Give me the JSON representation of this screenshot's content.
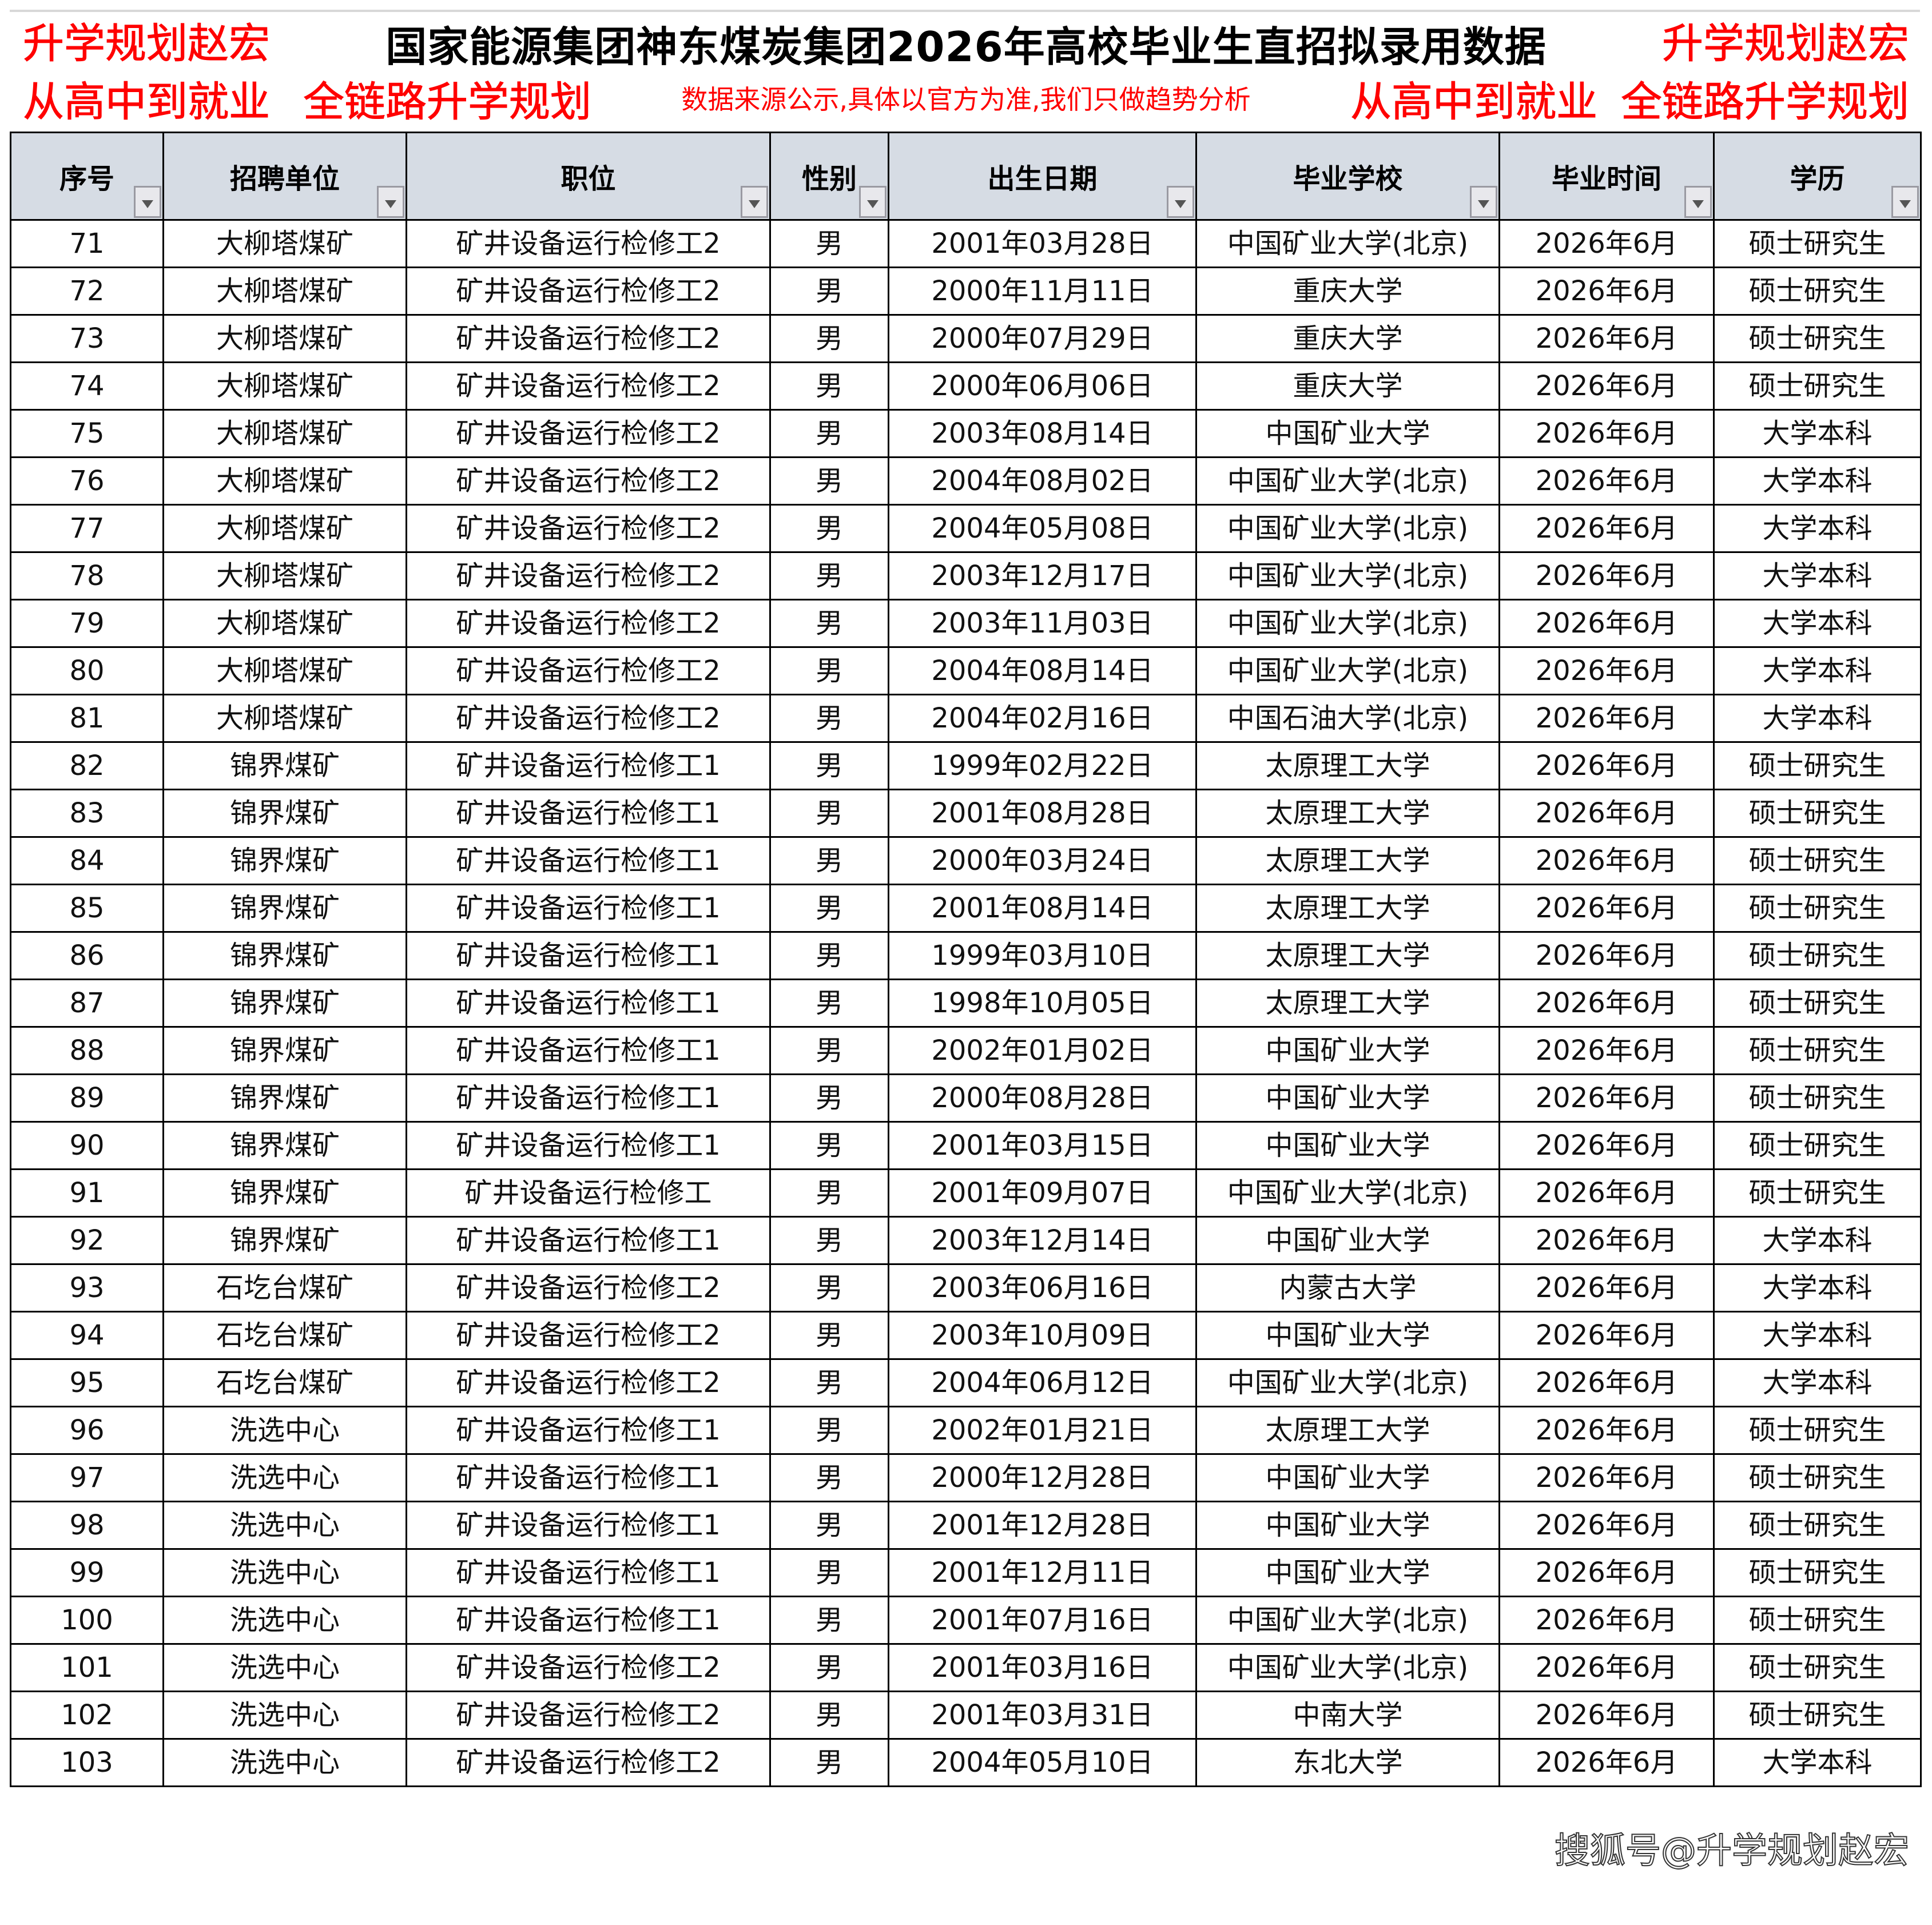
{
  "title": "国家能源集团神东煤炭集团2026年高校毕业生直招拟录用数据",
  "subtitle": "数据来源公示,具体以官方为准,我们只做趋势分析",
  "columns": [
    "序号",
    "招聘单位",
    "职位",
    "性别",
    "出生日期",
    "毕业学校",
    "毕业时间",
    "学历"
  ],
  "rows": [
    [
      "71",
      "大柳塔煤矿",
      "矿井设备运行检修工2",
      "男",
      "2001年03月28日",
      "中国矿业大学(北京)",
      "2026年6月",
      "硕士研究生"
    ],
    [
      "72",
      "大柳塔煤矿",
      "矿井设备运行检修工2",
      "男",
      "2000年11月11日",
      "重庆大学",
      "2026年6月",
      "硕士研究生"
    ],
    [
      "73",
      "大柳塔煤矿",
      "矿井设备运行检修工2",
      "男",
      "2000年07月29日",
      "重庆大学",
      "2026年6月",
      "硕士研究生"
    ],
    [
      "74",
      "大柳塔煤矿",
      "矿井设备运行检修工2",
      "男",
      "2000年06月06日",
      "重庆大学",
      "2026年6月",
      "硕士研究生"
    ],
    [
      "75",
      "大柳塔煤矿",
      "矿井设备运行检修工2",
      "男",
      "2003年08月14日",
      "中国矿业大学",
      "2026年6月",
      "大学本科"
    ],
    [
      "76",
      "大柳塔煤矿",
      "矿井设备运行检修工2",
      "男",
      "2004年08月02日",
      "中国矿业大学(北京)",
      "2026年6月",
      "大学本科"
    ],
    [
      "77",
      "大柳塔煤矿",
      "矿井设备运行检修工2",
      "男",
      "2004年05月08日",
      "中国矿业大学(北京)",
      "2026年6月",
      "大学本科"
    ],
    [
      "78",
      "大柳塔煤矿",
      "矿井设备运行检修工2",
      "男",
      "2003年12月17日",
      "中国矿业大学(北京)",
      "2026年6月",
      "大学本科"
    ],
    [
      "79",
      "大柳塔煤矿",
      "矿井设备运行检修工2",
      "男",
      "2003年11月03日",
      "中国矿业大学(北京)",
      "2026年6月",
      "大学本科"
    ],
    [
      "80",
      "大柳塔煤矿",
      "矿井设备运行检修工2",
      "男",
      "2004年08月14日",
      "中国矿业大学(北京)",
      "2026年6月",
      "大学本科"
    ],
    [
      "81",
      "大柳塔煤矿",
      "矿井设备运行检修工2",
      "男",
      "2004年02月16日",
      "中国石油大学(北京)",
      "2026年6月",
      "大学本科"
    ],
    [
      "82",
      "锦界煤矿",
      "矿井设备运行检修工1",
      "男",
      "1999年02月22日",
      "太原理工大学",
      "2026年6月",
      "硕士研究生"
    ],
    [
      "83",
      "锦界煤矿",
      "矿井设备运行检修工1",
      "男",
      "2001年08月28日",
      "太原理工大学",
      "2026年6月",
      "硕士研究生"
    ],
    [
      "84",
      "锦界煤矿",
      "矿井设备运行检修工1",
      "男",
      "2000年03月24日",
      "太原理工大学",
      "2026年6月",
      "硕士研究生"
    ],
    [
      "85",
      "锦界煤矿",
      "矿井设备运行检修工1",
      "男",
      "2001年08月14日",
      "太原理工大学",
      "2026年6月",
      "硕士研究生"
    ],
    [
      "86",
      "锦界煤矿",
      "矿井设备运行检修工1",
      "男",
      "1999年03月10日",
      "太原理工大学",
      "2026年6月",
      "硕士研究生"
    ],
    [
      "87",
      "锦界煤矿",
      "矿井设备运行检修工1",
      "男",
      "1998年10月05日",
      "太原理工大学",
      "2026年6月",
      "硕士研究生"
    ],
    [
      "88",
      "锦界煤矿",
      "矿井设备运行检修工1",
      "男",
      "2002年01月02日",
      "中国矿业大学",
      "2026年6月",
      "硕士研究生"
    ],
    [
      "89",
      "锦界煤矿",
      "矿井设备运行检修工1",
      "男",
      "2000年08月28日",
      "中国矿业大学",
      "2026年6月",
      "硕士研究生"
    ],
    [
      "90",
      "锦界煤矿",
      "矿井设备运行检修工1",
      "男",
      "2001年03月15日",
      "中国矿业大学",
      "2026年6月",
      "硕士研究生"
    ],
    [
      "91",
      "锦界煤矿",
      "矿井设备运行检修工",
      "男",
      "2001年09月07日",
      "中国矿业大学(北京)",
      "2026年6月",
      "硕士研究生"
    ],
    [
      "92",
      "锦界煤矿",
      "矿井设备运行检修工1",
      "男",
      "2003年12月14日",
      "中国矿业大学",
      "2026年6月",
      "大学本科"
    ],
    [
      "93",
      "石圪台煤矿",
      "矿井设备运行检修工2",
      "男",
      "2003年06月16日",
      "内蒙古大学",
      "2026年6月",
      "大学本科"
    ],
    [
      "94",
      "石圪台煤矿",
      "矿井设备运行检修工2",
      "男",
      "2003年10月09日",
      "中国矿业大学",
      "2026年6月",
      "大学本科"
    ],
    [
      "95",
      "石圪台煤矿",
      "矿井设备运行检修工2",
      "男",
      "2004年06月12日",
      "中国矿业大学(北京)",
      "2026年6月",
      "大学本科"
    ],
    [
      "96",
      "洗选中心",
      "矿井设备运行检修工1",
      "男",
      "2002年01月21日",
      "太原理工大学",
      "2026年6月",
      "硕士研究生"
    ],
    [
      "97",
      "洗选中心",
      "矿井设备运行检修工1",
      "男",
      "2000年12月28日",
      "中国矿业大学",
      "2026年6月",
      "硕士研究生"
    ],
    [
      "98",
      "洗选中心",
      "矿井设备运行检修工1",
      "男",
      "2001年12月28日",
      "中国矿业大学",
      "2026年6月",
      "硕士研究生"
    ],
    [
      "99",
      "洗选中心",
      "矿井设备运行检修工1",
      "男",
      "2001年12月11日",
      "中国矿业大学",
      "2026年6月",
      "硕士研究生"
    ],
    [
      "100",
      "洗选中心",
      "矿井设备运行检修工1",
      "男",
      "2001年07月16日",
      "中国矿业大学(北京)",
      "2026年6月",
      "硕士研究生"
    ],
    [
      "101",
      "洗选中心",
      "矿井设备运行检修工2",
      "男",
      "2001年03月16日",
      "中国矿业大学(北京)",
      "2026年6月",
      "硕士研究生"
    ],
    [
      "102",
      "洗选中心",
      "矿井设备运行检修工2",
      "男",
      "2001年03月31日",
      "中南大学",
      "2026年6月",
      "硕士研究生"
    ],
    [
      "103",
      "洗选中心",
      "矿井设备运行检修工2",
      "男",
      "2004年05月10日",
      "东北大学",
      "2026年6月",
      "大学本科"
    ]
  ],
  "watermark": {
    "lines": [
      "升学规划赵宏",
      "从高中到就业",
      "全链路升学规划"
    ],
    "color": "#ff0000"
  },
  "source_mark": "搜狐号@升学规划赵宏",
  "header_bg": "#d6dce4"
}
